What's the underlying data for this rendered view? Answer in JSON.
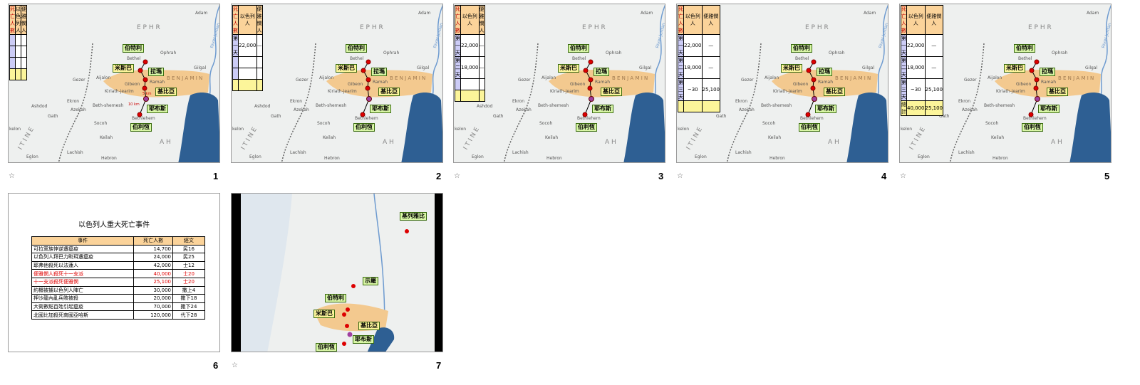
{
  "slides": [
    {
      "number": "1",
      "animated": true,
      "rows_shown": 0,
      "distances": [
        "5 km",
        "10 km"
      ]
    },
    {
      "number": "2",
      "animated": false,
      "rows_shown": 1
    },
    {
      "number": "3",
      "animated": true,
      "rows_shown": 2
    },
    {
      "number": "4",
      "animated": true,
      "rows_shown": 3
    },
    {
      "number": "5",
      "animated": true,
      "rows_shown": 4
    },
    {
      "number": "6",
      "animated": false
    },
    {
      "number": "7",
      "animated": true
    }
  ],
  "animation_icon": "transition-star-icon",
  "casualty_table": {
    "headers": [
      "死亡人數",
      "以色列人",
      "便雅憫人"
    ],
    "rows": [
      [
        "第一天",
        "22,000",
        "—"
      ],
      [
        "第二天",
        "18,000",
        "—"
      ],
      [
        "第三天",
        "~30",
        "25,100"
      ],
      [
        "總計",
        "40,000",
        "25,100"
      ]
    ]
  },
  "map_labels": {
    "bethel": "伯特利",
    "mizpah": "米斯巴",
    "ramah": "拉瑪",
    "gibeah": "基比亞",
    "jebus": "耶布斯",
    "bethlehem": "伯利恆",
    "jabesh": "基列雅比",
    "shiloh": "示羅"
  },
  "map_places": [
    "Gezer",
    "Aijalon",
    "Ekron",
    "Ashdod",
    "Gath",
    "Azekah",
    "Beth-shemesh",
    "Socoh",
    "Keilah",
    "Lachish",
    "Eglon",
    "Hebron",
    "Ophrah",
    "Gilgal",
    "Adam",
    "Bethel",
    "Gibeon",
    "Kiriath-jearim",
    "Ramah",
    "Bethlehem",
    "kelon",
    "River Jordan"
  ],
  "region_letters": {
    "ephraim": "E P H R",
    "benjamin": "B E N J A M I N",
    "judah": "A H",
    "philistia": "I T I N E"
  },
  "events": {
    "title": "以色列人重大死亡事件",
    "headers": [
      "事件",
      "死亡人數",
      "經文"
    ],
    "rows": [
      {
        "event": "可拉黨族悖逆遭瘟疫",
        "deaths": "14,700",
        "ref": "民16",
        "highlight": false
      },
      {
        "event": "以色列人拜巴力毗珥遭瘟疫",
        "deaths": "24,000",
        "ref": "民25",
        "highlight": false
      },
      {
        "event": "耶弗他殺死以法蓮人",
        "deaths": "42,000",
        "ref": "士12",
        "highlight": false
      },
      {
        "event": "便雅憫人殺死十一支派",
        "deaths": "40,000",
        "ref": "士20",
        "highlight": true
      },
      {
        "event": "十一支派殺死便雅憫",
        "deaths": "25,100",
        "ref": "士20",
        "highlight": true
      },
      {
        "event": "約櫃被擄以色列人陣亡",
        "deaths": "30,000",
        "ref": "撒上4",
        "highlight": false
      },
      {
        "event": "押沙龍內亂兵敗被殺",
        "deaths": "20,000",
        "ref": "撒下18",
        "highlight": false
      },
      {
        "event": "大衛數點百姓引起瘟疫",
        "deaths": "70,000",
        "ref": "撒下24",
        "highlight": false
      },
      {
        "event": "北國比加殺死南國亞哈斯",
        "deaths": "120,000",
        "ref": "代下28",
        "highlight": false
      }
    ]
  },
  "colors": {
    "header": "#fbd39a",
    "row_label": "#ccccf6",
    "total": "#fcf59a",
    "callout": "#d9f7a6",
    "highlight": "#e00000",
    "sea": "#2e5f93",
    "benjamin": "#f3c98f"
  }
}
